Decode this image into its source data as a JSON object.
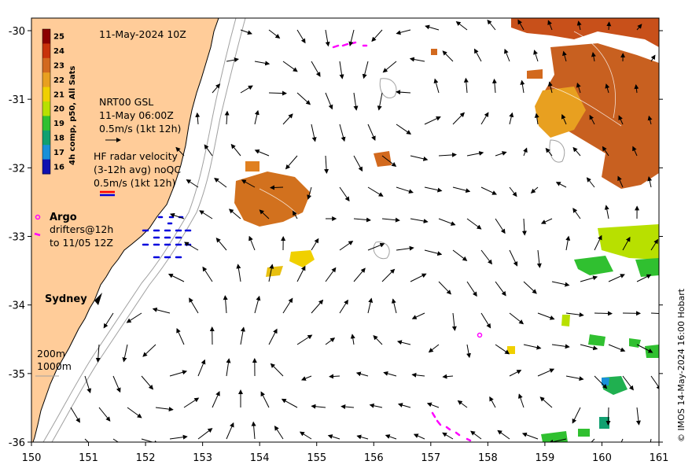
{
  "title": "11-May-2024 10Z",
  "legend": {
    "gsl_line1": "NRT00 GSL",
    "gsl_line2": "11-May 06:00Z",
    "gsl_scale": "0.5m/s (1kt 12h)",
    "hf_line1": "HF radar velocity",
    "hf_line2": "(3-12h avg) noQC",
    "hf_scale": "0.5m/s (1kt 12h)",
    "argo": "Argo",
    "drifters_line1": "drifters@12h",
    "drifters_line2": "to 11/05 12Z",
    "contour_200": "200m",
    "contour_1000": "1000m"
  },
  "place_label": "Sydney",
  "colorbar": {
    "label": "4h comp, p50, All Sats",
    "ticks": [
      "25",
      "24",
      "23",
      "22",
      "21",
      "20",
      "19",
      "18",
      "17",
      "16"
    ],
    "colors": [
      "#8b0000",
      "#c8320a",
      "#d2691e",
      "#e8a020",
      "#f0d000",
      "#b8e000",
      "#30c030",
      "#10a070",
      "#1890d8",
      "#1010b0"
    ]
  },
  "axes": {
    "x_ticks": [
      "150",
      "151",
      "152",
      "153",
      "154",
      "155",
      "156",
      "157",
      "158",
      "159",
      "160",
      "161"
    ],
    "y_ticks": [
      "-30",
      "-31",
      "-32",
      "-33",
      "-34",
      "-35",
      "-36"
    ]
  },
  "credit": "© IMOS 14-May-2024 16:00 Hobart"
}
